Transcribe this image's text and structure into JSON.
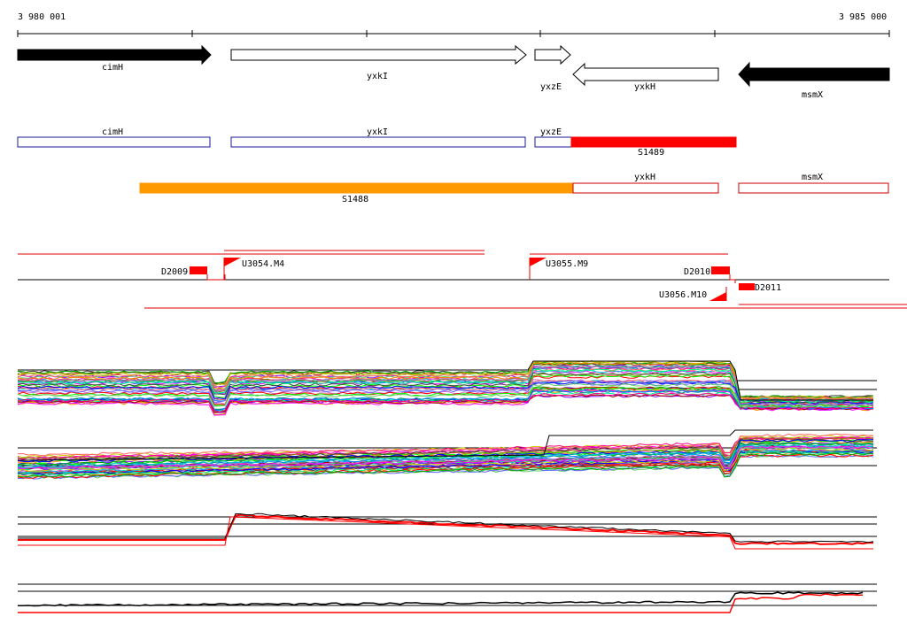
{
  "coordinates": {
    "start": "3 980 001",
    "end": "3 985 000"
  },
  "genes": [
    {
      "name": "cimH",
      "strand": "+",
      "filled": true
    },
    {
      "name": "yxkI",
      "strand": "+",
      "filled": false
    },
    {
      "name": "yxzE",
      "strand": "+",
      "filled": false
    },
    {
      "name": "yxkH",
      "strand": "-",
      "filled": false
    },
    {
      "name": "msmX",
      "strand": "-",
      "filled": true
    }
  ],
  "segments_row1": [
    {
      "label": "cimH",
      "color": "#1a1a9a"
    },
    {
      "label": "yxkI",
      "color": "#1a1a9a"
    },
    {
      "label": "yxzE",
      "color": "#1a1a9a"
    },
    {
      "label": "S1489",
      "color": "#ff0000"
    }
  ],
  "segments_row2": [
    {
      "label": "S1488",
      "color": "#ff9900"
    },
    {
      "label": "yxkH",
      "color": "#cc0000"
    },
    {
      "label": "msmX",
      "color": "#cc0000"
    }
  ],
  "features": [
    {
      "label": "D2009",
      "type": "box"
    },
    {
      "label": "U3054.M4",
      "type": "flag"
    },
    {
      "label": "U3055.M9",
      "type": "flag"
    },
    {
      "label": "D2010",
      "type": "box"
    },
    {
      "label": "D2011",
      "type": "box"
    },
    {
      "label": "U3056.M10",
      "type": "flag"
    }
  ],
  "colors": {
    "forward": "#000000",
    "segment_outline": "#1a1a9a",
    "highlight": "#ff0000",
    "orange": "#ff9900"
  }
}
